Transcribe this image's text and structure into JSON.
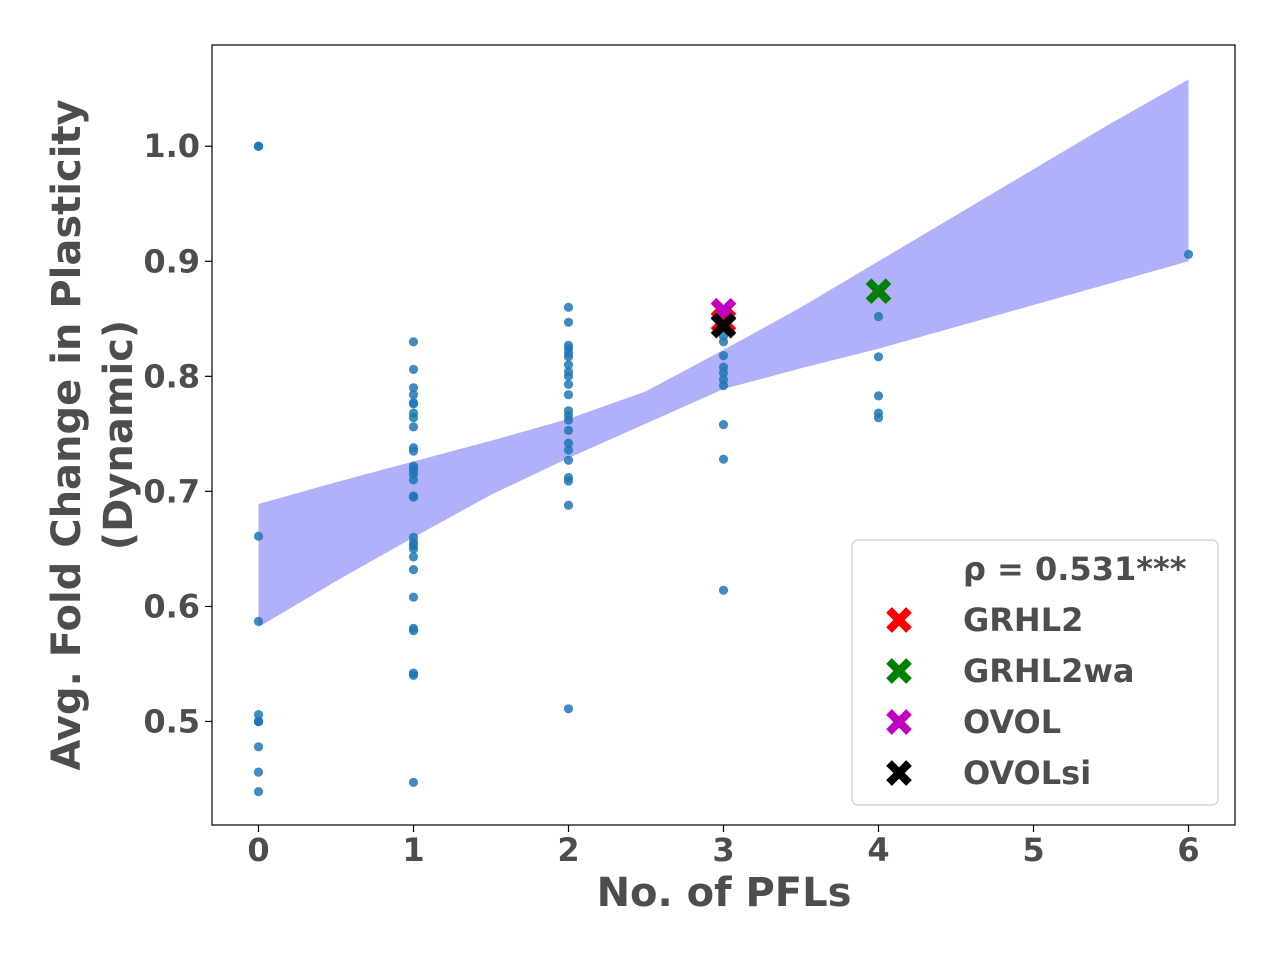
{
  "chart_data": {
    "type": "scatter",
    "xlabel": "No. of PFLs",
    "ylabel_line1": "Avg. Fold Change in Plasticity",
    "ylabel_line2": "(Dynamic)",
    "xlim": [
      -0.3,
      6.3
    ],
    "ylim": [
      0.41,
      1.088
    ],
    "xticks": [
      0,
      1,
      2,
      3,
      4,
      5,
      6
    ],
    "yticks": [
      0.5,
      0.6,
      0.7,
      0.8,
      0.9,
      1.0
    ],
    "ytick_labels": [
      "0.5",
      "0.6",
      "0.7",
      "0.8",
      "0.9",
      "1.0"
    ],
    "grid": false,
    "legend_position": "lower-right",
    "colors": {
      "points": "#1f77b4",
      "band": "#b0b0fb",
      "GRHL2": "#ff0000",
      "GRHL2wa": "#008000",
      "OVOL": "#bf00bf",
      "OVOLsi": "#000000",
      "text": "#4d4d4d"
    },
    "series": [
      {
        "points": [
          [
            0,
            1.0
          ],
          [
            0,
            1.0
          ],
          [
            0,
            1.0
          ],
          [
            0,
            0.661
          ],
          [
            0,
            0.587
          ],
          [
            0,
            0.506
          ],
          [
            0,
            0.5
          ],
          [
            0,
            0.5
          ],
          [
            0,
            0.5
          ],
          [
            0,
            0.5
          ],
          [
            0,
            0.478
          ],
          [
            0,
            0.456
          ],
          [
            0,
            0.439
          ],
          [
            1,
            0.83
          ],
          [
            1,
            0.806
          ],
          [
            1,
            0.79
          ],
          [
            1,
            0.784
          ],
          [
            1,
            0.777
          ],
          [
            1,
            0.776
          ],
          [
            1,
            0.768
          ],
          [
            1,
            0.764
          ],
          [
            1,
            0.756
          ],
          [
            1,
            0.738
          ],
          [
            1,
            0.735
          ],
          [
            1,
            0.722
          ],
          [
            1,
            0.72
          ],
          [
            1,
            0.718
          ],
          [
            1,
            0.715
          ],
          [
            1,
            0.71
          ],
          [
            1,
            0.696
          ],
          [
            1,
            0.695
          ],
          [
            1,
            0.66
          ],
          [
            1,
            0.656
          ],
          [
            1,
            0.653
          ],
          [
            1,
            0.65
          ],
          [
            1,
            0.643
          ],
          [
            1,
            0.632
          ],
          [
            1,
            0.608
          ],
          [
            1,
            0.581
          ],
          [
            1,
            0.579
          ],
          [
            1,
            0.542
          ],
          [
            1,
            0.54
          ],
          [
            1,
            0.447
          ],
          [
            2,
            0.86
          ],
          [
            2,
            0.847
          ],
          [
            2,
            0.827
          ],
          [
            2,
            0.824
          ],
          [
            2,
            0.82
          ],
          [
            2,
            0.817
          ],
          [
            2,
            0.81
          ],
          [
            2,
            0.804
          ],
          [
            2,
            0.8
          ],
          [
            2,
            0.793
          ],
          [
            2,
            0.784
          ],
          [
            2,
            0.77
          ],
          [
            2,
            0.766
          ],
          [
            2,
            0.762
          ],
          [
            2,
            0.753
          ],
          [
            2,
            0.742
          ],
          [
            2,
            0.736
          ],
          [
            2,
            0.727
          ],
          [
            2,
            0.712
          ],
          [
            2,
            0.709
          ],
          [
            2,
            0.688
          ],
          [
            2,
            0.511
          ],
          [
            3,
            0.843
          ],
          [
            3,
            0.835
          ],
          [
            3,
            0.83
          ],
          [
            3,
            0.818
          ],
          [
            3,
            0.808
          ],
          [
            3,
            0.803
          ],
          [
            3,
            0.797
          ],
          [
            3,
            0.792
          ],
          [
            3,
            0.758
          ],
          [
            3,
            0.728
          ],
          [
            3,
            0.614
          ],
          [
            4,
            0.852
          ],
          [
            4,
            0.817
          ],
          [
            4,
            0.783
          ],
          [
            4,
            0.768
          ],
          [
            4,
            0.764
          ],
          [
            6,
            0.906
          ]
        ]
      }
    ],
    "band": {
      "x": [
        0,
        0.5,
        1,
        1.5,
        2,
        2.5,
        3,
        3.5,
        4,
        4.5,
        5,
        5.5,
        6
      ],
      "lower": [
        0.582,
        0.622,
        0.66,
        0.697,
        0.729,
        0.759,
        0.789,
        0.807,
        0.824,
        0.843,
        0.862,
        0.881,
        0.9
      ],
      "upper": [
        0.689,
        0.708,
        0.726,
        0.744,
        0.763,
        0.787,
        0.823,
        0.86,
        0.9,
        0.94,
        0.98,
        1.02,
        1.058
      ]
    },
    "highlight_markers": [
      {
        "name": "GRHL2",
        "x": 3,
        "y": 0.848
      },
      {
        "name": "GRHL2wa",
        "x": 4,
        "y": 0.874
      },
      {
        "name": "OVOL",
        "x": 3,
        "y": 0.857
      },
      {
        "name": "OVOLsi",
        "x": 3,
        "y": 0.844
      }
    ],
    "legend": {
      "stat": "ρ = 0.531***",
      "entries": [
        "GRHL2",
        "GRHL2wa",
        "OVOL",
        "OVOLsi"
      ]
    }
  }
}
